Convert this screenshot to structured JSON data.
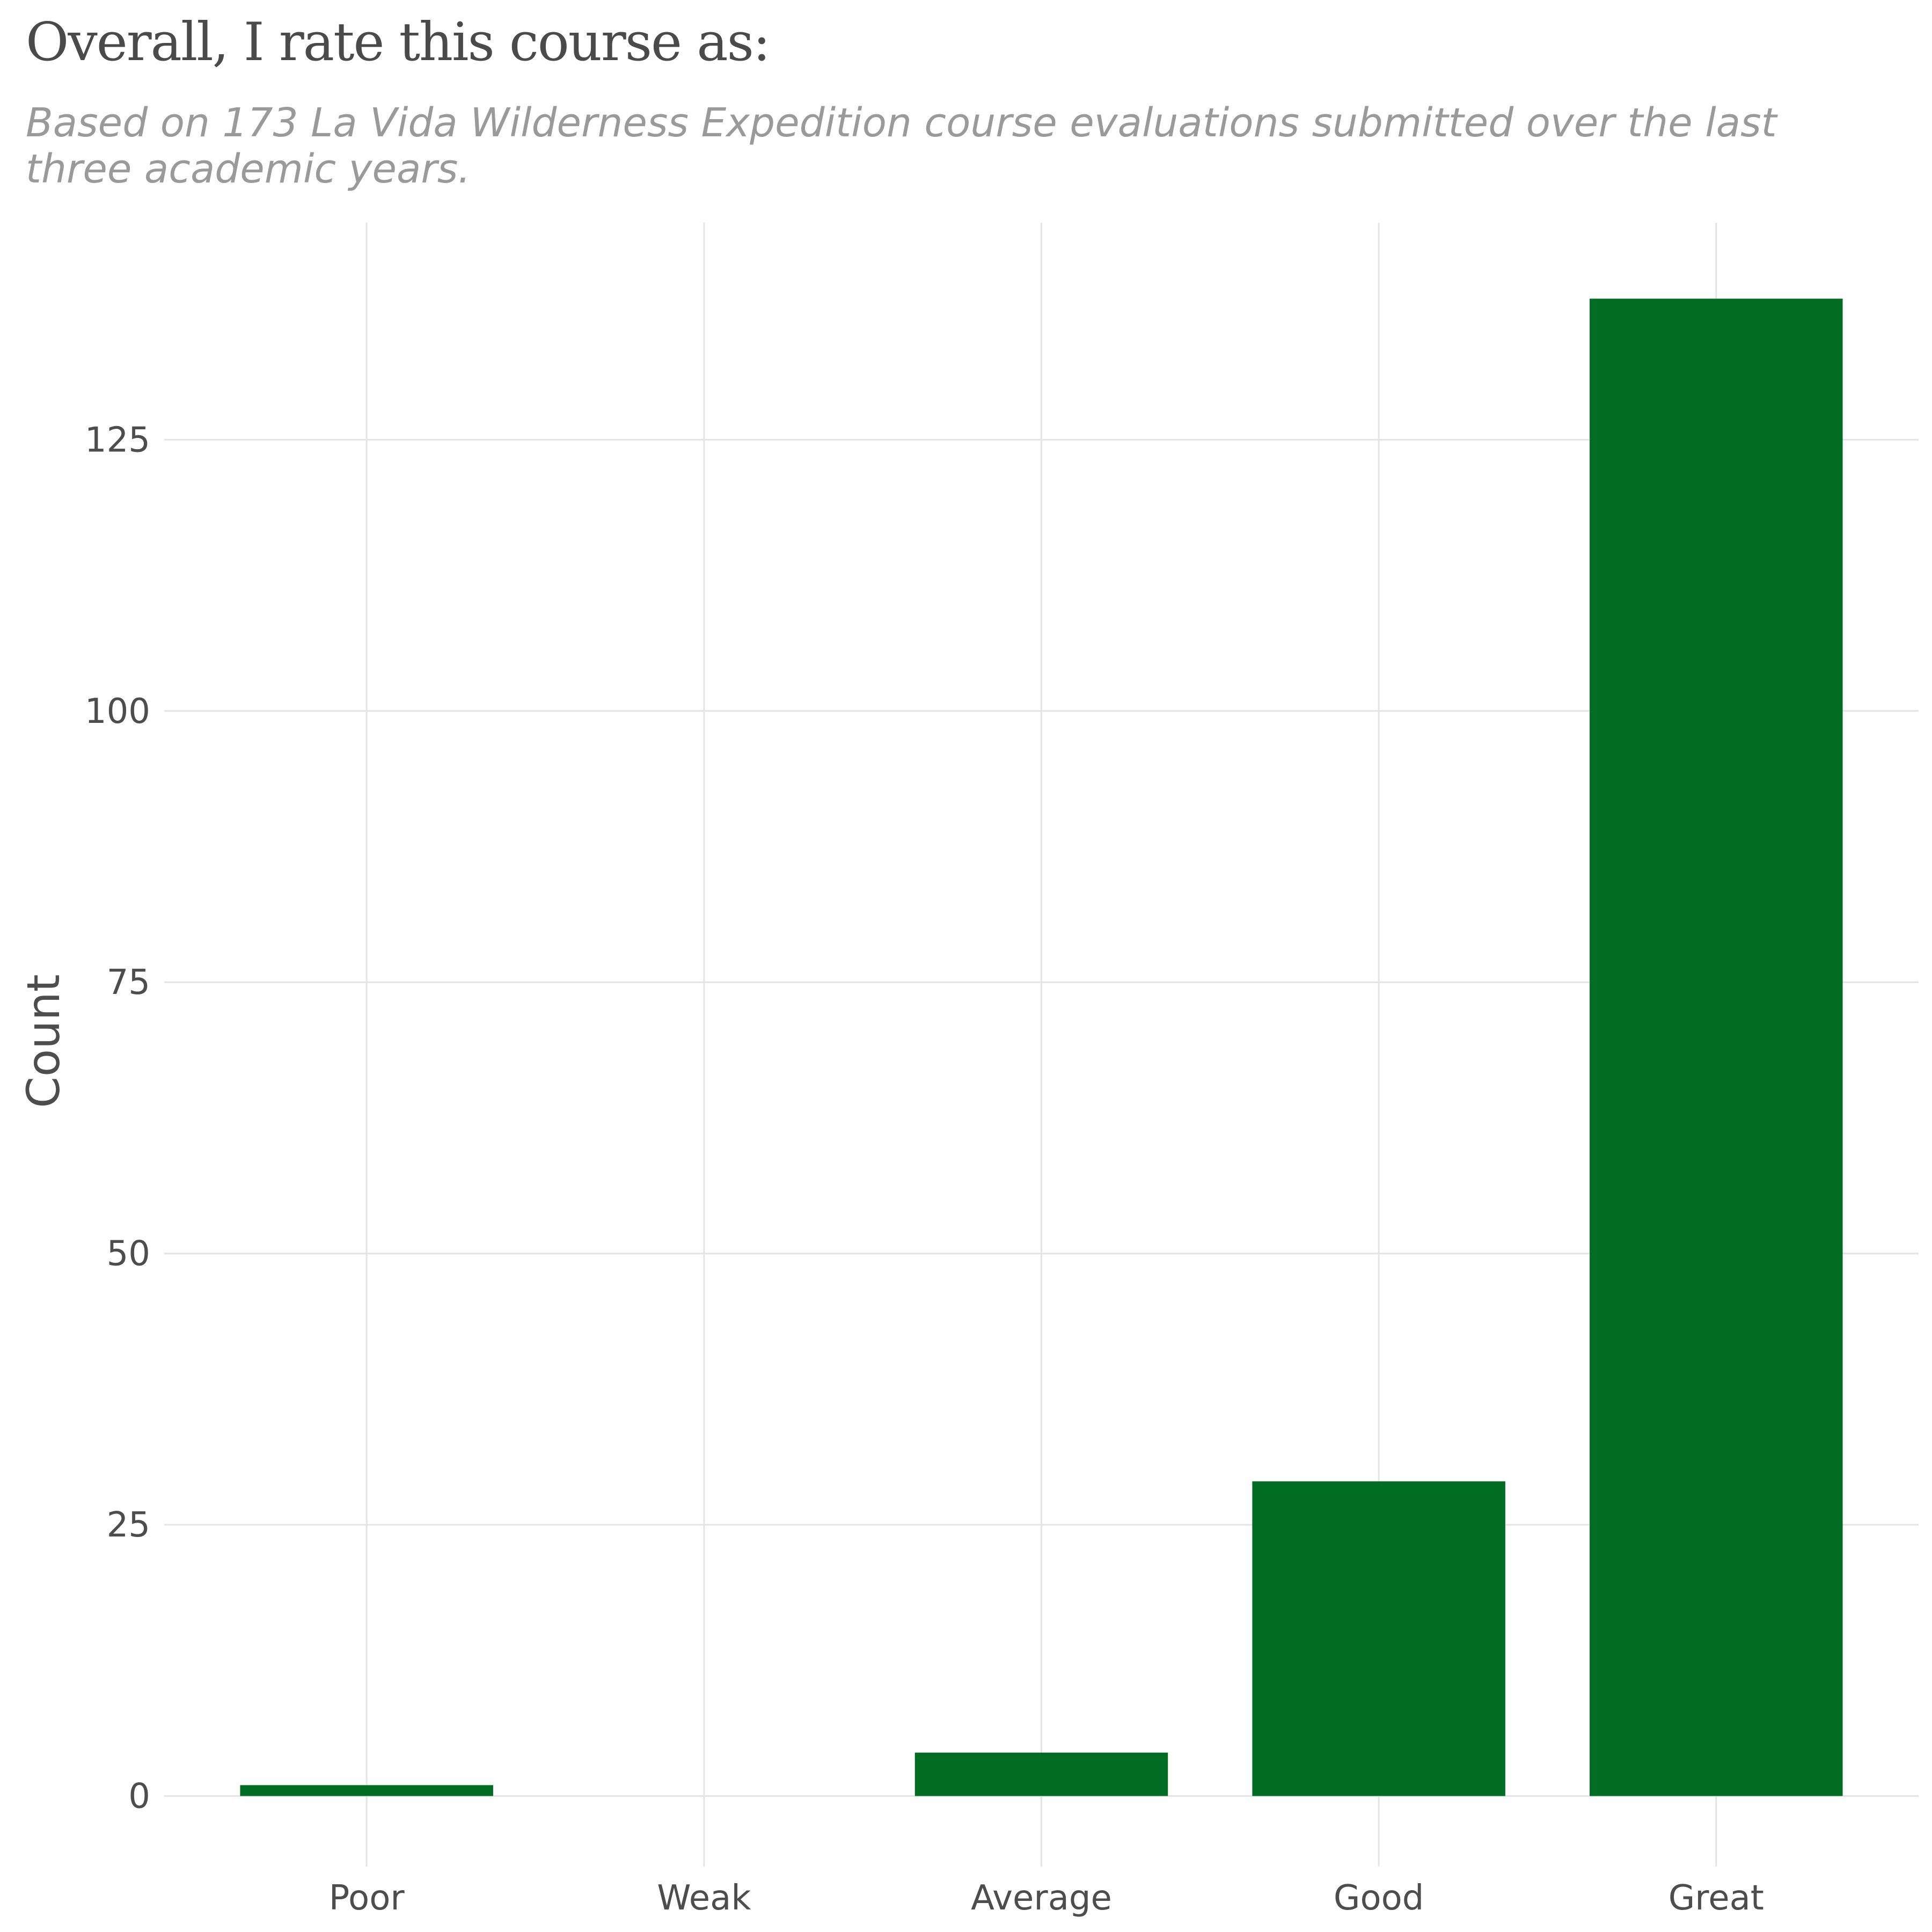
{
  "chart_data": {
    "type": "bar",
    "title": "Overall, I rate this course as:",
    "subtitle": "Based on 173 La Vida Wilderness Expedition course evaluations submitted over the last three academic years.",
    "xlabel": "",
    "ylabel": "Count",
    "categories": [
      "Poor",
      "Weak",
      "Average",
      "Good",
      "Great"
    ],
    "values": [
      1,
      0,
      4,
      29,
      138
    ],
    "ylim": [
      -6.5,
      145
    ],
    "yticks": [
      0,
      25,
      50,
      75,
      100,
      125
    ],
    "grid": true,
    "bar_color": "#006d23",
    "grid_color": "#e4e4e4"
  }
}
